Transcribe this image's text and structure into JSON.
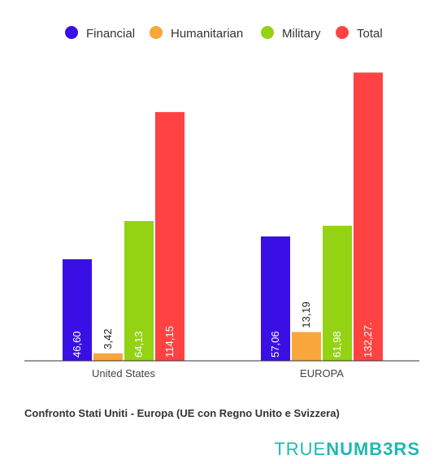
{
  "chart_data": {
    "type": "bar",
    "categories": [
      "United States",
      "EUROPA"
    ],
    "series": [
      {
        "name": "Financial",
        "color": "#3a0fe6",
        "values": [
          46.6,
          57.06
        ],
        "labels": [
          "46,60",
          "57,06"
        ]
      },
      {
        "name": "Humanitarian",
        "color": "#f9a63b",
        "values": [
          3.42,
          13.19
        ],
        "labels": [
          "3,42",
          "13,19"
        ]
      },
      {
        "name": "Military",
        "color": "#94d214",
        "values": [
          64.13,
          61.98
        ],
        "labels": [
          "64,13",
          "61,98"
        ]
      },
      {
        "name": "Total",
        "color": "#ff4343",
        "values": [
          114.15,
          132.27
        ],
        "labels": [
          "114,15",
          "132,27."
        ]
      }
    ],
    "ylim": [
      0,
      135
    ],
    "grid": false,
    "legend": "top-center"
  },
  "caption": "Confronto Stati Uniti - Europa (UE con Regno Unito e Svizzera)",
  "brand": {
    "light": "TRUE",
    "bold": "NUMB3RS",
    "color": "#22b8b0"
  }
}
